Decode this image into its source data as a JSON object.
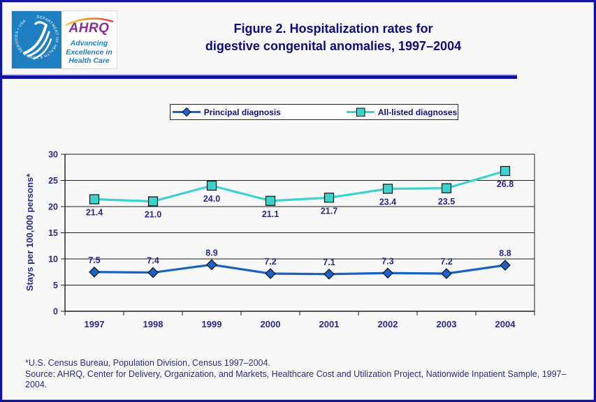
{
  "header": {
    "title_line1": "Figure 2. Hospitalization rates for",
    "title_line2": "digestive congenital anomalies, 1997–2004",
    "logo": {
      "hhs_seal_text": "DEPARTMENT OF HEALTH & HUMAN SERVICES • USA",
      "ahrq_acronym": "AHRQ",
      "tagline_line1": "Advancing",
      "tagline_line2": "Excellence in",
      "tagline_line3": "Health Care"
    }
  },
  "chart_data": {
    "type": "line",
    "title": "Figure 2. Hospitalization rates for digestive congenital anomalies, 1997–2004",
    "categories": [
      "1997",
      "1998",
      "1999",
      "2000",
      "2001",
      "2002",
      "2003",
      "2004"
    ],
    "series": [
      {
        "name": "Principal diagnosis",
        "values": [
          7.5,
          7.4,
          8.9,
          7.2,
          7.1,
          7.3,
          7.2,
          8.8
        ],
        "color": "#1A62C5",
        "marker": "diamond",
        "label_position": "above"
      },
      {
        "name": "All-listed diagnoses",
        "values": [
          21.4,
          21.0,
          24.0,
          21.1,
          21.7,
          23.4,
          23.5,
          26.8
        ],
        "color": "#3BD3CD",
        "marker": "square",
        "label_position": "below"
      }
    ],
    "xlabel": "",
    "ylabel": "Stays per 100,000 persons*",
    "ylim": [
      0,
      30
    ],
    "yticks": [
      0,
      5,
      10,
      15,
      20,
      25,
      30
    ],
    "grid": true,
    "legend_position": "top"
  },
  "footnotes": {
    "line1": "*U.S. Census Bureau, Population Division, Census 1997–2004.",
    "line2": "Source: AHRQ, Center for Delivery, Organization, and Markets, Healthcare Cost and Utilization Project, Nationwide Inpatient Sample, 1997–2004."
  },
  "colors": {
    "title_navy": "#0C0C7A",
    "label_navy": "#28288C",
    "axis_black": "#1c1c1c",
    "principal_blue": "#1A62C5",
    "all_listed_teal": "#3BD3CD",
    "page_border_blue": "#1111A2",
    "logo_blue": "#1E80C0",
    "ahrq_purple": "#8A2D8F"
  }
}
